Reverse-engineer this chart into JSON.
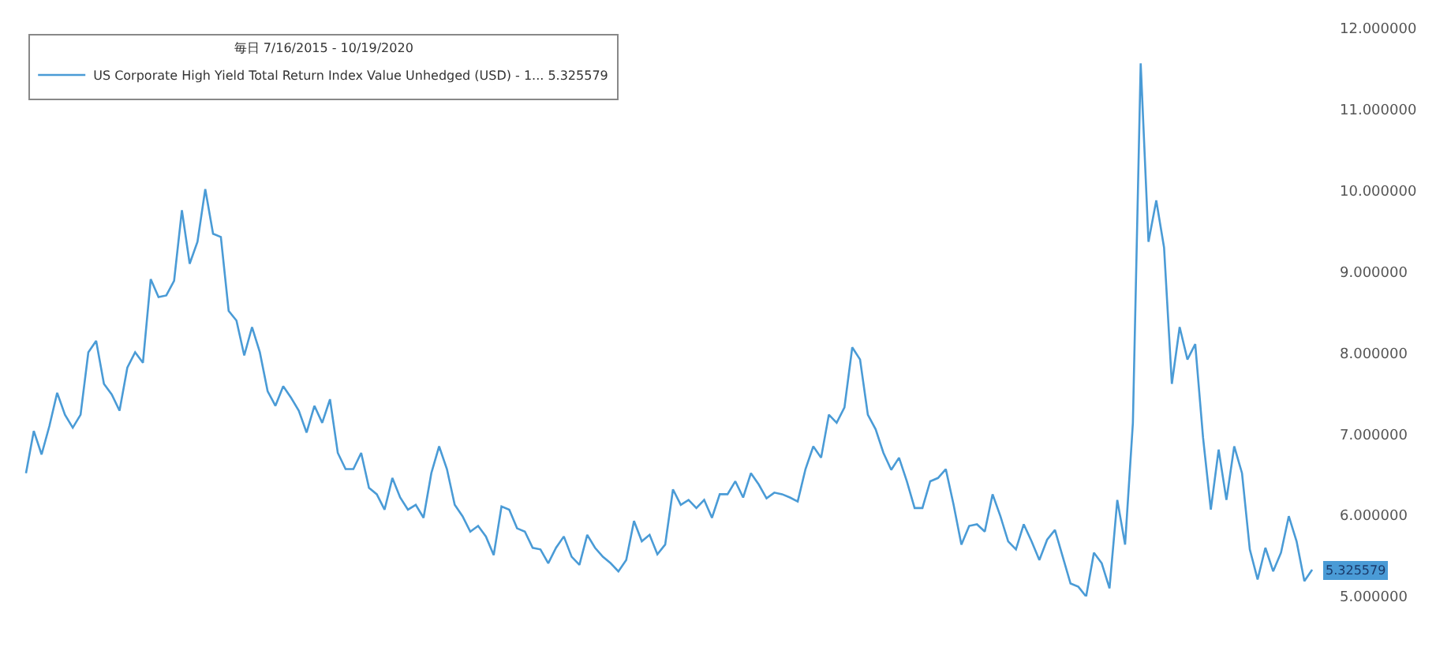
{
  "chart_data": {
    "type": "line",
    "legend_title": "毎日 7/16/2015 - 10/19/2020",
    "categories": [
      null,
      null,
      null,
      null,
      null,
      null,
      null,
      null,
      null,
      null,
      null,
      null,
      null,
      null,
      null,
      null,
      null,
      null,
      null,
      null,
      null,
      null,
      null,
      null,
      null,
      null,
      null,
      null,
      null,
      null,
      null,
      null,
      null,
      null,
      null,
      null,
      null,
      null,
      null,
      null,
      null,
      null,
      null,
      null,
      null,
      null,
      null,
      null,
      null,
      null,
      null,
      null,
      null,
      null,
      null,
      null,
      null,
      null,
      null,
      null,
      null,
      null,
      null,
      null,
      null,
      null,
      null,
      null,
      null,
      null,
      null,
      null,
      null,
      null,
      null,
      null,
      null,
      null,
      null,
      null,
      null,
      null,
      null,
      null,
      null,
      null,
      null,
      null,
      null,
      null,
      null,
      null,
      null,
      null,
      null,
      null,
      null,
      null,
      null,
      null,
      null,
      null,
      null,
      null,
      null,
      null,
      null,
      null,
      null,
      null,
      null,
      null,
      null,
      null,
      null,
      null,
      null,
      null,
      null,
      null,
      null,
      null,
      null,
      null,
      null,
      null,
      null,
      null,
      null,
      null,
      null,
      null,
      null,
      null,
      null,
      null,
      null,
      null,
      null,
      null,
      null,
      null,
      null,
      null,
      null,
      null,
      null,
      null,
      null,
      null,
      null,
      null,
      null,
      null,
      null,
      null,
      null,
      null,
      null,
      null,
      null,
      null,
      null,
      null,
      null,
      null
    ],
    "series": [
      {
        "name": "US Corporate High Yield Total Return Index Value Unhedged (USD) - 1... 5.325579",
        "color": "#4a9bd6",
        "values": [
          6.52,
          7.04,
          6.75,
          7.1,
          7.51,
          7.24,
          7.08,
          7.24,
          8.01,
          8.15,
          7.62,
          7.49,
          7.29,
          7.82,
          8.01,
          7.88,
          8.91,
          8.69,
          8.71,
          8.89,
          9.76,
          9.1,
          9.37,
          10.02,
          9.47,
          9.43,
          8.52,
          8.4,
          7.97,
          8.32,
          8.01,
          7.53,
          7.35,
          7.59,
          7.45,
          7.29,
          7.02,
          7.35,
          7.14,
          7.43,
          6.77,
          6.57,
          6.57,
          6.77,
          6.34,
          6.26,
          6.07,
          6.46,
          6.22,
          6.07,
          6.13,
          5.97,
          6.52,
          6.85,
          6.57,
          6.13,
          5.99,
          5.8,
          5.87,
          5.74,
          5.51,
          6.11,
          6.07,
          5.84,
          5.8,
          5.6,
          5.58,
          5.41,
          5.6,
          5.74,
          5.49,
          5.39,
          5.76,
          5.6,
          5.49,
          5.41,
          5.31,
          5.45,
          5.93,
          5.68,
          5.76,
          5.52,
          5.64,
          6.32,
          6.13,
          6.19,
          6.09,
          6.19,
          5.97,
          6.26,
          6.26,
          6.42,
          6.22,
          6.52,
          6.38,
          6.21,
          6.28,
          6.26,
          6.22,
          6.17,
          6.57,
          6.85,
          6.71,
          7.24,
          7.14,
          7.33,
          8.07,
          7.92,
          7.24,
          7.06,
          6.77,
          6.56,
          6.71,
          6.42,
          6.09,
          6.09,
          6.42,
          6.46,
          6.57,
          6.13,
          5.64,
          5.87,
          5.89,
          5.8,
          6.26,
          5.99,
          5.68,
          5.58,
          5.89,
          5.68,
          5.45,
          5.7,
          5.82,
          5.49,
          5.16,
          5.12,
          5.0,
          5.54,
          5.41,
          5.1,
          6.19,
          5.64,
          7.14,
          11.57,
          9.37,
          9.88,
          9.3,
          7.62,
          8.32,
          7.92,
          8.11,
          6.96,
          6.07,
          6.81,
          6.19,
          6.85,
          6.52,
          5.58,
          5.21,
          5.6,
          5.31,
          5.54,
          5.99,
          5.68,
          5.19,
          5.33
        ]
      }
    ],
    "ylim": [
      5,
      12
    ],
    "yticks": [
      {
        "value": 5,
        "label": "5.000000"
      },
      {
        "value": 6,
        "label": "6.000000"
      },
      {
        "value": 7,
        "label": "7.000000"
      },
      {
        "value": 8,
        "label": "8.000000"
      },
      {
        "value": 9,
        "label": "9.000000"
      },
      {
        "value": 10,
        "label": "10.000000"
      },
      {
        "value": 11,
        "label": "11.000000"
      },
      {
        "value": 12,
        "label": "12.000000"
      }
    ],
    "tick_labels": "y",
    "legend": "top left",
    "annotations": [
      "5.325579"
    ]
  }
}
